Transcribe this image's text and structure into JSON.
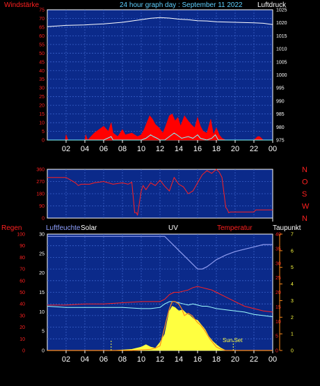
{
  "header": {
    "left_label": "Windstärke",
    "title": "24 hour graph day : September 11 2022",
    "right_label": "Luftdruck"
  },
  "panel3_labels": {
    "regen": "Regen",
    "luftfeuchte": "Luftfeuchte",
    "solar": "Solar",
    "uv": "UV",
    "temperatur": "Temperatur",
    "taupunkt": "Taupunkt",
    "sun_set": "Sun Set"
  },
  "x_ticks": [
    "02",
    "04",
    "06",
    "08",
    "10",
    "12",
    "14",
    "16",
    "18",
    "20",
    "22",
    "00"
  ],
  "colors": {
    "grid_bg": "#0b2a8a",
    "grid_line": "#3a62c9",
    "wind": "#ff0000",
    "gust": "#7fffff",
    "pressure": "#ffffff",
    "direction": "#ff2020",
    "humidity": "#8f9cf0",
    "solar": "#ffff40",
    "uv": "#ff8c1a",
    "temperature": "#ff2020",
    "dewpoint": "#a0ffff",
    "sunset": "#ffff40"
  },
  "chart_data": [
    {
      "type": "line",
      "title": "24 hour graph day : September 11 2022",
      "x_ticks": [
        "02",
        "04",
        "06",
        "08",
        "10",
        "12",
        "14",
        "16",
        "18",
        "20",
        "22",
        "00"
      ],
      "left_axis": {
        "label": "Windstärke",
        "ticks": [
          0,
          5,
          10,
          15,
          20,
          25,
          30,
          35,
          40,
          45,
          50,
          55,
          60,
          65,
          70,
          75
        ]
      },
      "right_axis": {
        "label": "Luftdruck",
        "ticks": [
          975,
          980,
          985,
          990,
          995,
          1000,
          1005,
          1010,
          1015,
          1020,
          1025
        ]
      },
      "series": [
        {
          "name": "pressure",
          "axis": "right",
          "x": [
            0,
            2,
            4,
            6,
            8,
            10,
            11,
            12,
            13,
            14,
            15,
            16,
            17,
            18,
            20,
            22,
            23,
            24
          ],
          "y": [
            1018.5,
            1019,
            1019.2,
            1019.6,
            1020.2,
            1021.2,
            1021.7,
            1022,
            1021.8,
            1021.4,
            1021.2,
            1020.8,
            1020.7,
            1020.4,
            1020.2,
            1020,
            1019.8,
            1019.3
          ]
        },
        {
          "name": "wind",
          "axis": "left",
          "x": [
            0,
            1.9,
            2,
            2.2,
            4,
            4.1,
            4.3,
            5,
            5.5,
            6,
            6.5,
            6.8,
            7,
            7.5,
            8,
            8.3,
            9,
            9.6,
            10,
            10.3,
            10.6,
            10.9,
            11.2,
            11.5,
            11.9,
            12.3,
            12.6,
            13,
            13.3,
            13.6,
            13.9,
            14.2,
            14.6,
            15,
            15.3,
            15.7,
            16,
            16.3,
            16.6,
            17,
            17.4,
            17.7,
            18,
            18.3,
            18.6,
            19,
            20,
            21,
            22,
            22.4,
            22.6,
            23,
            24
          ],
          "y": [
            0,
            0,
            3,
            0,
            0,
            3,
            0,
            4,
            6,
            8,
            5,
            10,
            4,
            2,
            6,
            3,
            4,
            2,
            3,
            6,
            10,
            14,
            12,
            9,
            7,
            4,
            8,
            14,
            15,
            11,
            13,
            8,
            14,
            11,
            9,
            7,
            13,
            8,
            5,
            4,
            12,
            3,
            7,
            3,
            1,
            0,
            0,
            0,
            0,
            2,
            2,
            0,
            0
          ]
        },
        {
          "name": "gust",
          "axis": "left",
          "x": [
            0,
            6,
            6.8,
            7,
            8,
            10,
            10.5,
            11,
            11.3,
            11.7,
            12,
            12.5,
            13,
            13.5,
            13.8,
            14.3,
            15,
            15.5,
            16,
            16.3,
            17,
            17.5,
            17.9,
            18.2,
            19,
            24
          ],
          "y": [
            0,
            0,
            2,
            0,
            0,
            0,
            1,
            3,
            2,
            1,
            0,
            0,
            2,
            4,
            3,
            1,
            2,
            1,
            3,
            1,
            0,
            1,
            3,
            0,
            0,
            0
          ]
        }
      ]
    },
    {
      "type": "line",
      "title": "",
      "x_ticks": [
        "02",
        "04",
        "06",
        "08",
        "10",
        "12",
        "14",
        "16",
        "18",
        "20",
        "22",
        "00"
      ],
      "left_axis": {
        "ticks": [
          0,
          90,
          180,
          270,
          360
        ]
      },
      "right_axis": {
        "ticks": [
          "N",
          "W",
          "S",
          "O",
          "N"
        ]
      },
      "series": [
        {
          "name": "direction",
          "x": [
            0,
            0.1,
            2,
            2.5,
            3,
            3.3,
            3.6,
            4.5,
            5,
            6,
            7,
            7.5,
            8,
            8.6,
            9,
            9.3,
            9.5,
            9.6,
            10,
            10.2,
            10.5,
            11,
            11.5,
            12,
            12.5,
            13,
            13.5,
            14,
            14.5,
            15,
            15.5,
            16,
            16.5,
            17,
            17.5,
            18,
            18.3,
            18.6,
            19,
            19.2,
            19.3,
            19.5,
            20,
            22,
            22.2,
            24
          ],
          "y": [
            300,
            300,
            300,
            280,
            260,
            240,
            250,
            250,
            260,
            270,
            250,
            255,
            260,
            250,
            265,
            40,
            40,
            20,
            200,
            240,
            210,
            260,
            240,
            280,
            235,
            200,
            300,
            250,
            230,
            180,
            200,
            260,
            320,
            350,
            330,
            360,
            340,
            300,
            80,
            60,
            40,
            45,
            45,
            45,
            60,
            60
          ]
        }
      ]
    },
    {
      "type": "line",
      "title": "",
      "x_ticks": [
        "02",
        "04",
        "06",
        "08",
        "10",
        "12",
        "14",
        "16",
        "18",
        "20",
        "22",
        "00"
      ],
      "left_axis_regen": {
        "label": "Regen",
        "ticks": [
          0,
          10,
          20,
          30,
          40,
          50,
          60,
          70,
          80,
          90,
          100
        ]
      },
      "left_axis_humidity": {
        "label": "Luftfeuchte",
        "ticks": [
          0,
          5,
          10,
          15,
          20,
          25,
          30
        ]
      },
      "right_axis_temperature": {
        "label": "Temperatur",
        "ticks": [
          0,
          5,
          10,
          15,
          20,
          25,
          30,
          35,
          40
        ]
      },
      "right_axis_dewpoint": {
        "label": "Taupunkt",
        "ticks": [
          0,
          1,
          2,
          3,
          4,
          5,
          6,
          7
        ]
      },
      "labels": [
        "Solar",
        "UV",
        "Sun Set"
      ],
      "series": [
        {
          "name": "humidity",
          "axis": "regen",
          "x": [
            0,
            2,
            4,
            6,
            8,
            10,
            11,
            12,
            12.5,
            13,
            13.5,
            14,
            14.5,
            15,
            15.5,
            16,
            16.5,
            17,
            17.5,
            18,
            19,
            20,
            21,
            22,
            23,
            24
          ],
          "y": [
            98,
            98,
            98,
            98,
            98,
            98,
            98,
            98,
            98,
            94,
            90,
            86,
            82,
            78,
            74,
            70,
            70,
            72,
            75,
            78,
            82,
            85,
            87,
            89,
            91,
            91
          ]
        },
        {
          "name": "temperature",
          "axis": "regen",
          "x": [
            0,
            2,
            4,
            6,
            8,
            10,
            11,
            12,
            12.5,
            13,
            13.5,
            14,
            14.5,
            15,
            15.5,
            16,
            16.5,
            17,
            17.5,
            18,
            19,
            20,
            21,
            22,
            23,
            24
          ],
          "y": [
            39,
            39,
            40,
            40,
            41,
            42,
            42,
            42,
            44,
            48,
            50,
            50,
            51,
            52,
            54,
            55,
            54,
            53,
            52,
            50,
            46,
            42,
            38,
            36,
            34,
            33
          ]
        },
        {
          "name": "dewpoint",
          "axis": "regen",
          "x": [
            0,
            2,
            4,
            6,
            8,
            10,
            11,
            12,
            12.5,
            13,
            13.5,
            14,
            14.5,
            15,
            15.5,
            16,
            16.5,
            17,
            17.5,
            18,
            19,
            20,
            21,
            22,
            23,
            24
          ],
          "y": [
            38,
            37,
            37,
            37,
            37,
            36,
            36,
            37,
            40,
            42,
            42,
            41,
            40,
            39,
            40,
            39,
            38,
            38,
            37,
            36,
            35,
            34,
            33,
            31,
            30,
            29
          ]
        },
        {
          "name": "solar",
          "axis": "regen",
          "x": [
            0,
            6.5,
            7,
            8,
            9,
            9.5,
            10,
            10.5,
            11,
            11.5,
            12,
            12.5,
            13,
            13.3,
            13.6,
            14,
            14.4,
            14.8,
            15.2,
            15.6,
            16,
            16.4,
            16.8,
            17.2,
            17.6,
            18,
            18.5,
            19,
            24
          ],
          "y": [
            0,
            0,
            0,
            0.5,
            1,
            2,
            3,
            5,
            3,
            2,
            7,
            14,
            34,
            38,
            37,
            34,
            35,
            32,
            30,
            27,
            26,
            22,
            18,
            12,
            8,
            5,
            2,
            0,
            0
          ]
        },
        {
          "name": "uv",
          "axis": "regen",
          "x": [
            0,
            9,
            10,
            11,
            11.5,
            12,
            12.5,
            12.8,
            13,
            13.3,
            13.6,
            14,
            14.3,
            14.6,
            15,
            15.4,
            15.8,
            16,
            16.3,
            16.7,
            17,
            17.3,
            17.7,
            18,
            18.5,
            19,
            24
          ],
          "y": [
            0,
            0,
            0.5,
            1,
            2,
            4,
            20,
            30,
            36,
            42,
            42,
            40,
            36,
            30,
            32,
            30,
            26,
            24,
            22,
            18,
            14,
            10,
            6,
            3,
            1,
            0,
            0
          ]
        }
      ]
    }
  ]
}
